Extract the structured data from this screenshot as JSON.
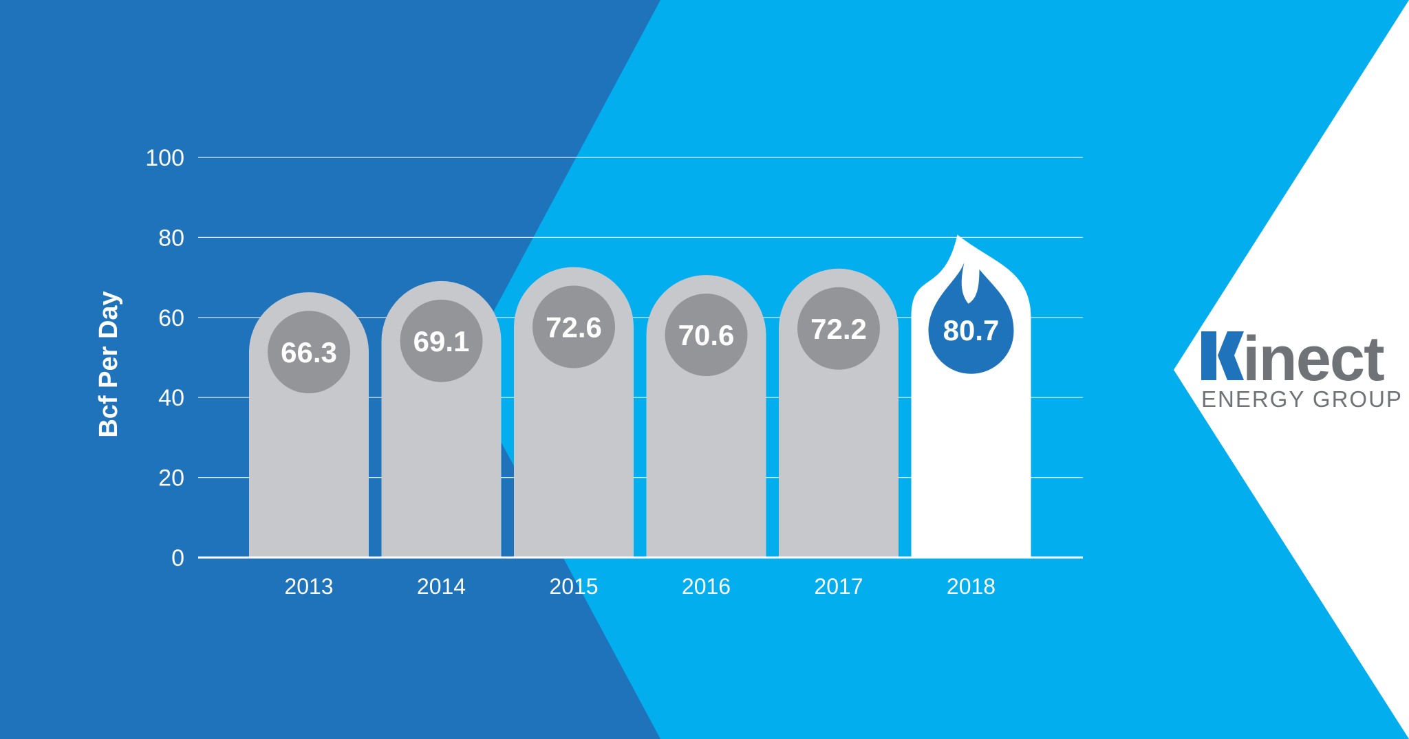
{
  "colors": {
    "background_dark": "#1e73bb",
    "background_light": "#03aeef",
    "bar": "#c6c8cc",
    "bar_badge": "#939598",
    "highlight_bar": "#ffffff",
    "highlight_badge": "#1e73bb",
    "logo_text": "#6f7276",
    "logo_accent": "#1e73bb"
  },
  "chart_data": {
    "type": "bar",
    "categories": [
      "2013",
      "2014",
      "2015",
      "2016",
      "2017",
      "2018"
    ],
    "values": [
      66.3,
      69.1,
      72.6,
      70.6,
      72.2,
      80.7
    ],
    "value_labels": [
      "66.3",
      "69.1",
      "72.6",
      "70.6",
      "72.2",
      "80.7"
    ],
    "highlight_index": 5,
    "highlight_shape": "flame",
    "title": "",
    "xlabel": "",
    "ylabel": "Bcf Per Day",
    "ylim": [
      0,
      100
    ],
    "yticks": [
      "0",
      "20",
      "40",
      "60",
      "80",
      "100"
    ],
    "grid": true,
    "legend": "none"
  },
  "logo": {
    "word": "inect",
    "initial_icon": "k-chevron-icon",
    "subtitle": "ENERGY GROUP"
  }
}
